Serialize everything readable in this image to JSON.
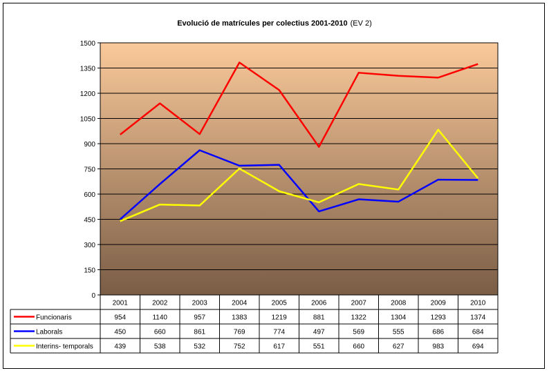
{
  "chart_data": {
    "type": "line",
    "title": "Evolució de matrícules per colectius 2001-2010",
    "subtitle": "(EV 2)",
    "categories": [
      "2001",
      "2002",
      "2003",
      "2004",
      "2005",
      "2006",
      "2007",
      "2008",
      "2009",
      "2010"
    ],
    "ylim": [
      0,
      1500
    ],
    "yticks": [
      0,
      150,
      300,
      450,
      600,
      750,
      900,
      1050,
      1200,
      1350,
      1500
    ],
    "grid": true,
    "legend": "data-table",
    "series": [
      {
        "name": "Funcionaris",
        "color": "#ff0000",
        "values": [
          954,
          1140,
          957,
          1383,
          1219,
          881,
          1322,
          1304,
          1293,
          1374
        ]
      },
      {
        "name": "Laborals",
        "color": "#0000ff",
        "values": [
          450,
          660,
          861,
          769,
          774,
          497,
          569,
          555,
          686,
          684
        ]
      },
      {
        "name": "Interins- temporals",
        "color": "#ffff00",
        "values": [
          439,
          538,
          532,
          752,
          617,
          551,
          660,
          627,
          983,
          694
        ]
      }
    ]
  },
  "colors": {
    "plot_top": "#fac99a",
    "plot_bottom": "#7a5d46",
    "grid": "#000000"
  }
}
